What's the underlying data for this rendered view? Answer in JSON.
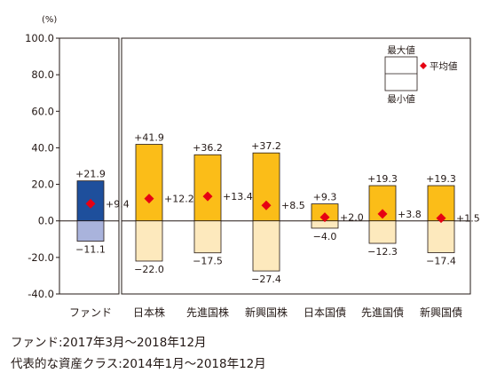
{
  "chart_data": {
    "type": "bar",
    "unit_label": "(%)",
    "ylim": [
      -40,
      100
    ],
    "y_ticks": [
      "100.0",
      "80.0",
      "60.0",
      "40.0",
      "20.0",
      "0.0",
      "-20.0",
      "-40.0"
    ],
    "y_tick_values": [
      100,
      80,
      60,
      40,
      20,
      0,
      -20,
      -40
    ],
    "categories": [
      "ファンド",
      "日本株",
      "先進国株",
      "新興国株",
      "日本国債",
      "先進国債",
      "新興国債"
    ],
    "series": [
      {
        "name": "最大値",
        "values": [
          21.9,
          41.9,
          36.2,
          37.2,
          9.3,
          19.3,
          19.3
        ],
        "labels": [
          "+21.9",
          "+41.9",
          "+36.2",
          "+37.2",
          "+9.3",
          "+19.3",
          "+19.3"
        ]
      },
      {
        "name": "最小値",
        "values": [
          -11.1,
          -22.0,
          -17.5,
          -27.4,
          -4.0,
          -12.3,
          -17.4
        ],
        "labels": [
          "−11.1",
          "−22.0",
          "−17.5",
          "−27.4",
          "−4.0",
          "−12.3",
          "−17.4"
        ]
      },
      {
        "name": "平均値",
        "values": [
          9.4,
          12.2,
          13.4,
          8.5,
          2.0,
          3.8,
          1.5
        ],
        "labels": [
          "+9.4",
          "+12.2",
          "+13.4",
          "+8.5",
          "+2.0",
          "+3.8",
          "+1.5"
        ]
      }
    ],
    "legend": {
      "max_label": "最大値",
      "min_label": "最小値",
      "avg_label": "平均値",
      "position": "top-right"
    },
    "colors": {
      "fund_pos": "#1e4f9c",
      "fund_neg": "#a9b3dc",
      "asset_pos": "#fbbd18",
      "asset_neg": "#fde9bd",
      "marker": "#e60012",
      "axis": "#231815"
    },
    "grid": false
  },
  "notes": [
    "ファンド:2017年3月～2018年12月",
    "代表的な資産クラス:2014年1月～2018年12月"
  ]
}
